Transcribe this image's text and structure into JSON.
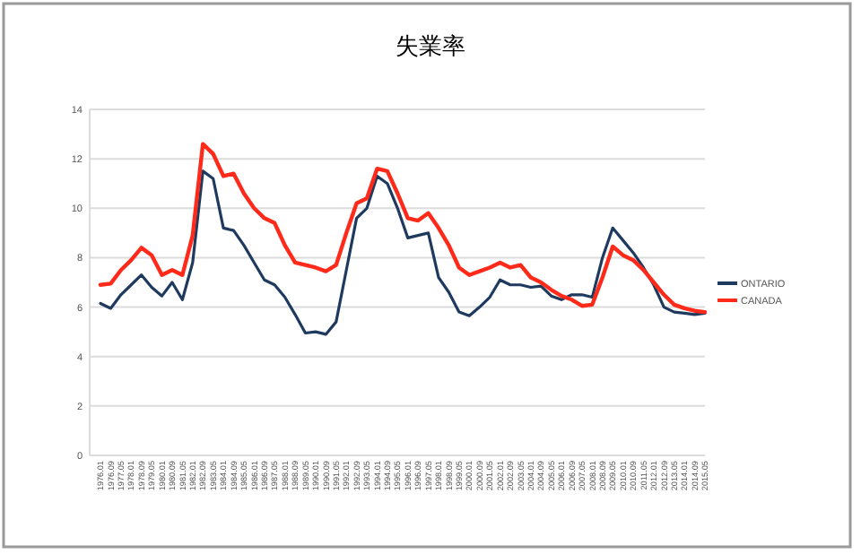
{
  "chart_data": {
    "type": "line",
    "title": "失業率",
    "categories": [
      "1976.01",
      "1976.09",
      "1977.05",
      "1978.01",
      "1978.09",
      "1979.05",
      "1980.01",
      "1980.09",
      "1981.05",
      "1982.01",
      "1982.09",
      "1983.05",
      "1984.01",
      "1984.09",
      "1985.05",
      "1986.01",
      "1986.09",
      "1987.05",
      "1988.01",
      "1988.09",
      "1989.05",
      "1990.01",
      "1990.09",
      "1991.05",
      "1992.01",
      "1992.09",
      "1993.05",
      "1994.01",
      "1994.09",
      "1995.05",
      "1996.01",
      "1996.09",
      "1997.05",
      "1998.01",
      "1998.09",
      "1999.05",
      "2000.01",
      "2000.09",
      "2001.05",
      "2002.01",
      "2002.09",
      "2003.05",
      "2004.01",
      "2004.09",
      "2005.05",
      "2006.01",
      "2006.09",
      "2007.05",
      "2008.01",
      "2008.09",
      "2009.05",
      "2010.01",
      "2010.09",
      "2011.05",
      "2012.01",
      "2012.09",
      "2013.05",
      "2014.01",
      "2014.09",
      "2015.05"
    ],
    "series": [
      {
        "name": "ONTARIO",
        "color": "#1f3a5f",
        "values": [
          6.15,
          5.95,
          6.5,
          6.9,
          7.3,
          6.8,
          6.45,
          7.0,
          6.3,
          7.8,
          11.5,
          11.2,
          9.2,
          9.1,
          8.5,
          7.8,
          7.1,
          6.9,
          6.4,
          5.7,
          4.95,
          5.0,
          4.9,
          5.4,
          7.5,
          9.6,
          10.0,
          11.3,
          11.0,
          10.0,
          8.8,
          8.9,
          9.0,
          7.2,
          6.6,
          5.8,
          5.65,
          6.0,
          6.4,
          7.1,
          6.9,
          6.9,
          6.8,
          6.85,
          6.45,
          6.3,
          6.5,
          6.5,
          6.4,
          8.0,
          9.2,
          8.7,
          8.2,
          7.6,
          6.9,
          6.0,
          5.8,
          5.75,
          5.7,
          5.75
        ]
      },
      {
        "name": "CANADA",
        "color": "#ff2a1a",
        "values": [
          6.9,
          6.95,
          7.5,
          7.9,
          8.4,
          8.1,
          7.3,
          7.5,
          7.3,
          8.9,
          12.6,
          12.2,
          11.3,
          11.4,
          10.6,
          10.0,
          9.6,
          9.4,
          8.5,
          7.8,
          7.7,
          7.6,
          7.45,
          7.7,
          9.0,
          10.2,
          10.4,
          11.6,
          11.5,
          10.6,
          9.6,
          9.5,
          9.8,
          9.2,
          8.5,
          7.6,
          7.3,
          7.45,
          7.6,
          7.8,
          7.6,
          7.7,
          7.2,
          7.0,
          6.7,
          6.45,
          6.3,
          6.05,
          6.1,
          7.2,
          8.45,
          8.1,
          7.9,
          7.5,
          7.0,
          6.5,
          6.1,
          5.95,
          5.85,
          5.8
        ]
      }
    ],
    "ylim": [
      0,
      14
    ],
    "yticks": [
      0,
      2,
      4,
      6,
      8,
      10,
      12,
      14
    ],
    "grid": "y",
    "legend": "right"
  }
}
